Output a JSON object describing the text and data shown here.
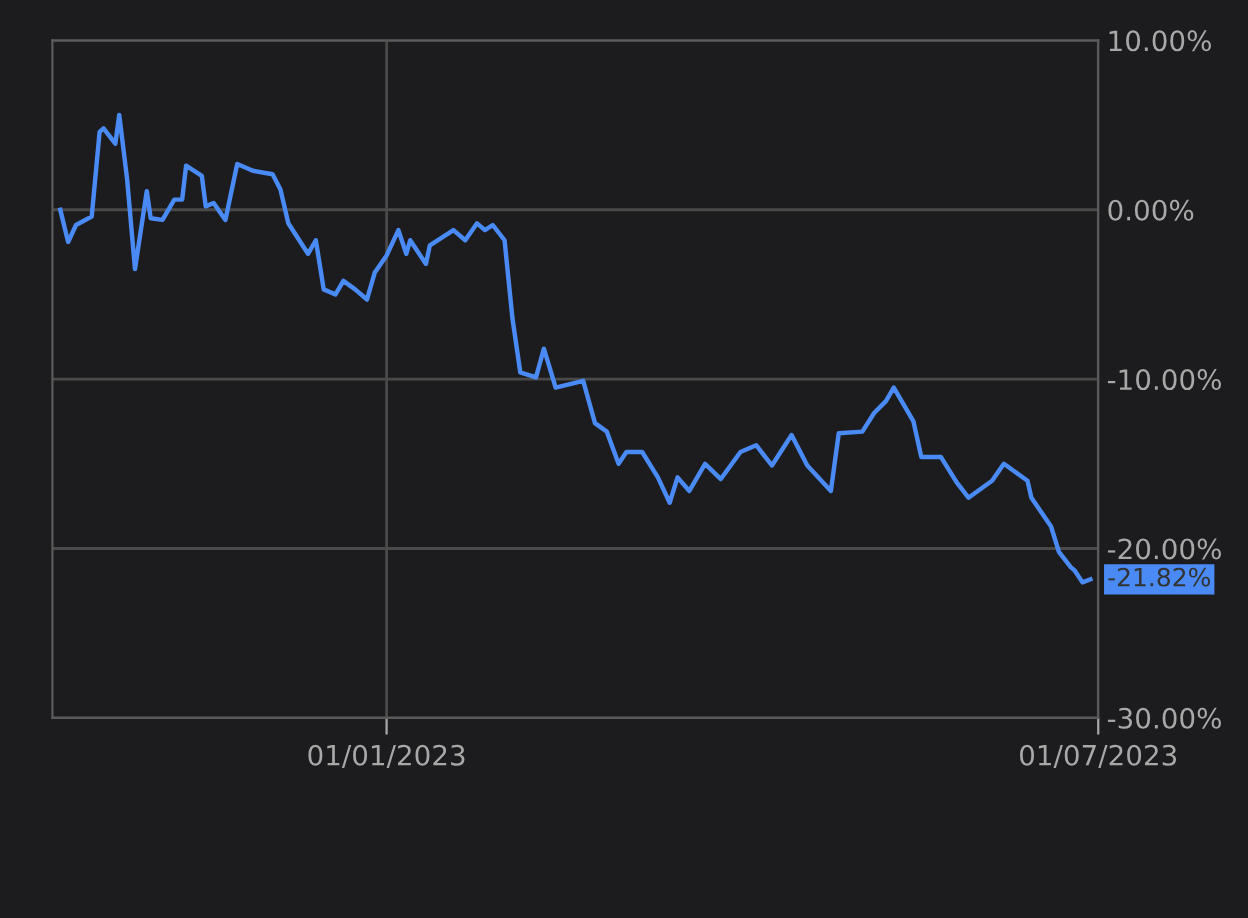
{
  "chart_data": {
    "type": "line",
    "x": [
      "2022-10-10",
      "2022-10-12",
      "2022-10-14",
      "2022-10-18",
      "2022-10-20",
      "2022-10-21",
      "2022-10-24",
      "2022-10-25",
      "2022-10-27",
      "2022-10-29",
      "2022-11-01",
      "2022-11-02",
      "2022-11-05",
      "2022-11-08",
      "2022-11-10",
      "2022-11-11",
      "2022-11-15",
      "2022-11-16",
      "2022-11-18",
      "2022-11-21",
      "2022-11-24",
      "2022-11-28",
      "2022-12-03",
      "2022-12-05",
      "2022-12-07",
      "2022-12-12",
      "2022-12-14",
      "2022-12-16",
      "2022-12-19",
      "2022-12-21",
      "2022-12-24",
      "2022-12-27",
      "2022-12-29",
      "2023-01-01",
      "2023-01-04",
      "2023-01-06",
      "2023-01-07",
      "2023-01-11",
      "2023-01-12",
      "2023-01-18",
      "2023-01-21",
      "2023-01-24",
      "2023-01-26",
      "2023-01-28",
      "2023-01-31",
      "2023-02-02",
      "2023-02-04",
      "2023-02-08",
      "2023-02-10",
      "2023-02-13",
      "2023-02-20",
      "2023-02-23",
      "2023-02-26",
      "2023-03-01",
      "2023-03-03",
      "2023-03-07",
      "2023-03-11",
      "2023-03-14",
      "2023-03-16",
      "2023-03-19",
      "2023-03-23",
      "2023-03-27",
      "2023-04-01",
      "2023-04-05",
      "2023-04-09",
      "2023-04-14",
      "2023-04-18",
      "2023-04-24",
      "2023-04-26",
      "2023-05-02",
      "2023-05-05",
      "2023-05-08",
      "2023-05-10",
      "2023-05-15",
      "2023-05-17",
      "2023-05-22",
      "2023-05-26",
      "2023-05-29",
      "2023-06-04",
      "2023-06-07",
      "2023-06-13",
      "2023-06-14",
      "2023-06-19",
      "2023-06-21",
      "2023-06-24",
      "2023-06-25",
      "2023-06-27",
      "2023-06-29"
    ],
    "series": [
      {
        "color": "#4a8af4",
        "values": [
          0,
          -1.9,
          -0.9,
          -0.4,
          4.6,
          4.8,
          3.9,
          5.6,
          1.8,
          -3.5,
          1.1,
          -0.5,
          -0.6,
          0.6,
          0.6,
          2.6,
          2.0,
          0.2,
          0.4,
          -0.6,
          2.7,
          2.3,
          2.1,
          1.2,
          -0.8,
          -2.6,
          -1.8,
          -4.7,
          -5.0,
          -4.2,
          -4.7,
          -5.3,
          -3.7,
          -2.7,
          -1.2,
          -2.6,
          -1.8,
          -3.2,
          -2.1,
          -1.2,
          -1.8,
          -0.8,
          -1.2,
          -0.9,
          -1.8,
          -6.4,
          -9.6,
          -9.9,
          -8.2,
          -10.5,
          -10.1,
          -12.6,
          -13.1,
          -15.0,
          -14.3,
          -14.3,
          -15.8,
          -17.3,
          -15.8,
          -16.6,
          -15.0,
          -15.9,
          -14.3,
          -13.9,
          -15.1,
          -13.3,
          -15.1,
          -16.6,
          -13.2,
          -13.1,
          -12.0,
          -11.3,
          -10.5,
          -12.5,
          -14.6,
          -14.6,
          -16.1,
          -17.0,
          -16.0,
          -15.0,
          -16.0,
          -17.0,
          -18.7,
          -20.2,
          -21.1,
          -21.3,
          -22.0,
          -21.82
        ]
      }
    ],
    "xlim": [
      "2022-10-08",
      "2023-07-01"
    ],
    "xticks": [
      {
        "value": "2023-01-01",
        "label": "01/01/2023"
      },
      {
        "value": "2023-07-01",
        "label": "01/07/2023"
      }
    ],
    "ylim": [
      -30,
      10
    ],
    "yticks": [
      {
        "value": 10,
        "label": "10.00%"
      },
      {
        "value": 0,
        "label": "0.00%"
      },
      {
        "value": -10,
        "label": "-10.00%"
      },
      {
        "value": -20,
        "label": "-20.00%"
      },
      {
        "value": -30,
        "label": "-30.00%"
      }
    ],
    "annotations": [
      {
        "text": "-21.82%",
        "x": "2023-06-29",
        "y": -21.82
      }
    ],
    "grid": true,
    "marker": "none",
    "line_style": "solid"
  }
}
